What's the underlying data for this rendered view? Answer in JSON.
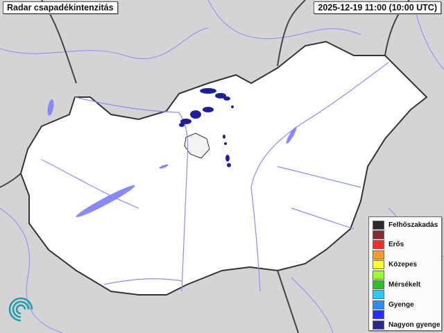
{
  "header": {
    "title": "Radar csapadékintenzitás",
    "timestamp": "2025-12-19 11:00 (10:00 UTC)"
  },
  "legend": {
    "items": [
      {
        "label": "Felhőszakadás",
        "color": "#2b2b2b"
      },
      {
        "label": "",
        "color": "#8b2a2a"
      },
      {
        "label": "Erős",
        "color": "#ff2a2a"
      },
      {
        "label": "",
        "color": "#ff9a2a"
      },
      {
        "label": "Közepes",
        "color": "#ffff2a"
      },
      {
        "label": "",
        "color": "#9aff2a"
      },
      {
        "label": "Mérsékelt",
        "color": "#2ac02a"
      },
      {
        "label": "",
        "color": "#2acaff"
      },
      {
        "label": "Gyenge",
        "color": "#2a8aff"
      },
      {
        "label": "",
        "color": "#2a2aff"
      },
      {
        "label": "Nagyon gyenge",
        "color": "#2a2a8a"
      }
    ]
  },
  "colors": {
    "background": "#d4d4d4",
    "country": "#ffffff",
    "water": "#8888ff",
    "precip": "#1f1f9a"
  },
  "logo": {
    "icon": "omsz-swirl-logo"
  }
}
